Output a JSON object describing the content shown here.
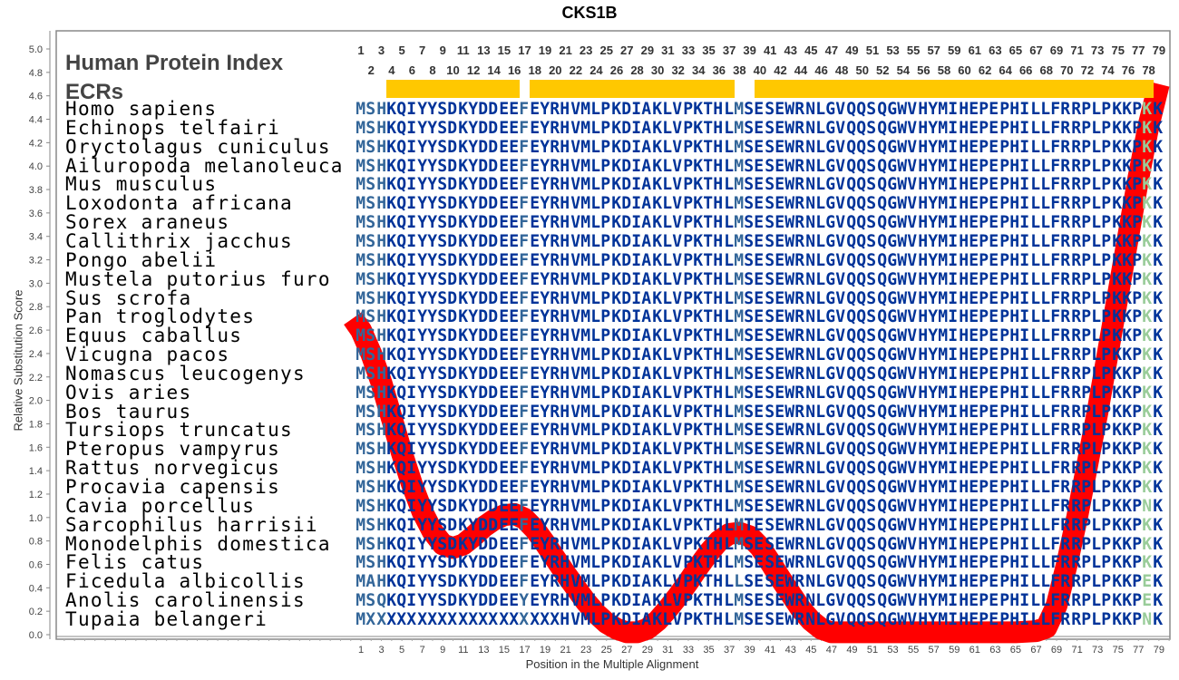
{
  "chart_data": {
    "type": "line",
    "title": "CKS1B",
    "xlabel": "Position in the Multiple Alignment",
    "ylabel": "Relative Substitution Score",
    "xlim": [
      1,
      79
    ],
    "ylim": [
      0.0,
      5.0
    ],
    "yticks": [
      "0.0",
      "0.2",
      "0.4",
      "0.6",
      "0.8",
      "1.0",
      "1.2",
      "1.4",
      "1.6",
      "1.8",
      "2.0",
      "2.2",
      "2.4",
      "2.6",
      "2.8",
      "3.0",
      "3.2",
      "3.4",
      "3.6",
      "3.8",
      "4.0",
      "4.2",
      "4.4",
      "4.6",
      "4.8",
      "5.0"
    ],
    "xticks": [
      "1",
      "3",
      "5",
      "7",
      "9",
      "11",
      "13",
      "15",
      "17",
      "19",
      "21",
      "23",
      "25",
      "27",
      "29",
      "31",
      "33",
      "35",
      "37",
      "39",
      "41",
      "43",
      "45",
      "47",
      "49",
      "51",
      "53",
      "55",
      "57",
      "59",
      "61",
      "63",
      "65",
      "67",
      "69",
      "71",
      "73",
      "75",
      "77",
      "79"
    ],
    "series": [
      {
        "name": "Relative Substitution Score",
        "color": "#ff0000",
        "x": [
          0.2,
          1,
          2,
          3,
          4,
          5,
          6,
          7,
          8,
          9,
          10,
          11,
          12,
          13,
          14,
          15,
          16,
          17,
          18,
          19,
          20,
          21,
          22,
          23,
          24,
          25,
          26,
          27,
          28,
          29,
          30,
          31,
          32,
          33,
          34,
          35,
          36,
          37,
          38,
          39,
          40,
          41,
          42,
          43,
          44,
          45,
          46,
          47,
          48,
          50,
          55,
          60,
          65,
          67,
          68,
          69,
          70,
          71,
          72,
          73,
          74,
          75,
          76,
          77,
          78,
          79
        ],
        "y": [
          2.7,
          2.6,
          2.4,
          2.15,
          1.85,
          1.55,
          1.28,
          1.05,
          0.88,
          0.77,
          0.74,
          0.77,
          0.84,
          0.92,
          0.98,
          1.02,
          1.03,
          0.99,
          0.9,
          0.78,
          0.65,
          0.52,
          0.4,
          0.28,
          0.18,
          0.1,
          0.05,
          0.02,
          0.02,
          0.05,
          0.12,
          0.22,
          0.33,
          0.45,
          0.58,
          0.7,
          0.8,
          0.86,
          0.87,
          0.84,
          0.75,
          0.62,
          0.48,
          0.35,
          0.22,
          0.12,
          0.05,
          0.02,
          0.02,
          0.02,
          0.02,
          0.02,
          0.02,
          0.03,
          0.06,
          0.25,
          0.6,
          1.0,
          1.45,
          1.9,
          2.4,
          2.9,
          3.4,
          3.9,
          4.35,
          4.7
        ]
      }
    ]
  },
  "header": {
    "protein_index_label": "Human Protein Index",
    "ecrs_label": "ECRs",
    "ecr_color": "#ffc800",
    "ecrs": [
      [
        4,
        16
      ],
      [
        18,
        37
      ],
      [
        40,
        78
      ]
    ],
    "top_numbers_odd": [
      "1",
      "3",
      "5",
      "7",
      "9",
      "11",
      "13",
      "15",
      "17",
      "19",
      "21",
      "23",
      "25",
      "27",
      "29",
      "31",
      "33",
      "35",
      "37",
      "39",
      "41",
      "43",
      "45",
      "47",
      "49",
      "51",
      "53",
      "55",
      "57",
      "59",
      "61",
      "63",
      "65",
      "67",
      "69",
      "71",
      "73",
      "75",
      "77",
      "79"
    ],
    "top_numbers_even": [
      "2",
      "4",
      "6",
      "8",
      "10",
      "12",
      "14",
      "16",
      "18",
      "20",
      "22",
      "24",
      "26",
      "28",
      "30",
      "32",
      "34",
      "36",
      "38",
      "40",
      "42",
      "44",
      "46",
      "48",
      "50",
      "52",
      "54",
      "56",
      "58",
      "60",
      "62",
      "64",
      "66",
      "68",
      "70",
      "72",
      "74",
      "76",
      "78"
    ]
  },
  "alignment": {
    "light_columns": [
      1,
      2,
      3,
      17,
      38
    ],
    "green_columns": [
      78
    ],
    "rows": [
      {
        "species": "Homo sapiens",
        "seq": "MSHKQIYYSDKYDDEEFEYRHVMLPKDIAKLVPKTHLMSESEWRNLGVQQSQGWVHYMIHEPEPHILLFRRPLPKKPKK"
      },
      {
        "species": "Echinops telfairi",
        "seq": "MSHKQIYYSDKYDDEEFEYRHVMLPKDIAKLVPKTHLMSESEWRNLGVQQSQGWVHYMIHEPEPHILLFRRPLPKKPKK"
      },
      {
        "species": "Oryctolagus cuniculus",
        "seq": "MSHKQIYYSDKYDDEEFEYRHVMLPKDIAKLVPKTHLMSESEWRNLGVQQSQGWVHYMIHEPEPHILLFRRPLPKKPKK"
      },
      {
        "species": "Ailuropoda melanoleuca",
        "seq": "MSHKQIYYSDKYDDEEFEYRHVMLPKDIAKLVPKTHLMSESEWRNLGVQQSQGWVHYMIHEPEPHILLFRRPLPKKPKK"
      },
      {
        "species": "Mus musculus",
        "seq": "MSHKQIYYSDKYDDEEFEYRHVMLPKDIAKLVPKTHLMSESEWRNLGVQQSQGWVHYMIHEPEPHILLFRRPLPKKPKK"
      },
      {
        "species": "Loxodonta africana",
        "seq": "MSHKQIYYSDKYDDEEFEYRHVMLPKDIAKLVPKTHLMSESEWRNLGVQQSQGWVHYMIHEPEPHILLFRRPLPKKPKK"
      },
      {
        "species": "Sorex araneus",
        "seq": "MSHKQIYYSDKYDDEEFEYRHVMLPKDIAKLVPKTHLMSESEWRNLGVQQSQGWVHYMIHEPEPHILLFRRPLPKKPKK"
      },
      {
        "species": "Callithrix jacchus",
        "seq": "MSHKQIYYSDKYDDEEFEYRHVMLPKDIAKLVPKTHLMSESEWRNLGVQQSQGWVHYMIHEPEPHILLFRRPLPKKPKK"
      },
      {
        "species": "Pongo abelii",
        "seq": "MSHKQIYYSDKYDDEEFEYRHVMLPKDIAKLVPKTHLMSESEWRNLGVQQSQGWVHYMIHEPEPHILLFRRPLPKKPKK"
      },
      {
        "species": "Mustela putorius furo",
        "seq": "MSHKQIYYSDKYDDEEFEYRHVMLPKDIAKLVPKTHLMSESEWRNLGVQQSQGWVHYMIHEPEPHILLFRRPLPKKPKK"
      },
      {
        "species": "Sus scrofa",
        "seq": "MSHKQIYYSDKYDDEEFEYRHVMLPKDIAKLVPKTHLMSESEWRNLGVQQSQGWVHYMIHEPEPHILLFRRPLPKKPKK"
      },
      {
        "species": "Pan troglodytes",
        "seq": "MSHKQIYYSDKYDDEEFEYRHVMLPKDIAKLVPKTHLMSESEWRNLGVQQSQGWVHYMIHEPEPHILLFRRPLPKKPKK"
      },
      {
        "species": "Equus caballus",
        "seq": "MSHKQIYYSDKYDDEEFEYRHVMLPKDIAKLVPKTHLMSESEWRNLGVQQSQGWVHYMIHEPEPHILLFRRPLPKKPKK"
      },
      {
        "species": "Vicugna pacos",
        "seq": "MSHKQIYYSDKYDDEEFEYRHVMLPKDIAKLVPKTHLMSESEWRNLGVQQSQGWVHYMIHEPEPHILLFRRPLPKKPKK"
      },
      {
        "species": "Nomascus leucogenys",
        "seq": "MSHKQIYYSDKYDDEEFEYRHVMLPKDIAKLVPKTHLMSESEWRNLGVQQSQGWVHYMIHEPEPHILLFRRPLPKKPKK"
      },
      {
        "species": "Ovis aries",
        "seq": "MSHKQIYYSDKYDDEEFEYRHVMLPKDIAKLVPKTHLMSESEWRNLGVQQSQGWVHYMIHEPEPHILLFRRPLPKKPKK"
      },
      {
        "species": "Bos taurus",
        "seq": "MSHKQIYYSDKYDDEEFEYRHVMLPKDIAKLVPKTHLMSESEWRNLGVQQSQGWVHYMIHEPEPHILLFRRPLPKKPKK"
      },
      {
        "species": "Tursiops truncatus",
        "seq": "MSHKQIYYSDKYDDEEFEYRHVMLPKDIAKLVPKTHLMSESEWRNLGVQQSQGWVHYMIHEPEPHILLFRRPLPKKPKK"
      },
      {
        "species": "Pteropus vampyrus",
        "seq": "MSHKQIYYSDKYDDEEFEYRHVMLPKDIAKLVPKTHLMSESEWRNLGVQQSQGWVHYMIHEPEPHILLFRRPLPKKPKK"
      },
      {
        "species": "Rattus norvegicus",
        "seq": "MSHKQIYYSDKYDDEEFEYRHVMLPKDIAKLVPKTHLMSESEWRNLGVQQSQGWVHYMIHEPEPHILLFRRPLPKKPKK"
      },
      {
        "species": "Procavia capensis",
        "seq": "MSHKQIYYSDKYDDEEFEYRHVMLPKDIAKLVPKTHLMSESEWRNLGVQQSQGWVHYMIHEPEPHILLFRRPLPKKPKK"
      },
      {
        "species": "Cavia porcellus",
        "seq": "MSHKQIYYSDKYDDEEFEYRHVMLPKDIAKLVPKTHLMSESEWRNLGVQQSQGWVHYMIHEPEPHILLFRRPLPKKPNK"
      },
      {
        "species": "Sarcophilus harrisii",
        "seq": "MSHKQIYYSDKYDDEEFEYRHVMLPKDIAKLVPKTHLMTESEWRNLGVQQSQGWVHYMIHEPEPHILLFRRPLPKKPKK"
      },
      {
        "species": "Monodelphis domestica",
        "seq": "MSHKQIYYSDKYDDEEFEYRHVMLPKDIAKLVPKTHLMSESEWRNLGVQQSQGWVHYMIHEPEPHILLFRRPLPKKPKK"
      },
      {
        "species": "Felis catus",
        "seq": "MSHKQIYYSDKYDDEEFEYRHVMLPKDIAKLVPKTHLMSESEWRNLGVQQSQGWVHYMIHEPEPHILLFRRPLPKKPKK"
      },
      {
        "species": "Ficedula albicollis",
        "seq": "MAHKQIYYSDKYDDEEFEYRHVMLPKDIAKLVPKTHLLSESEWRNLGVQQSQGWVHYMIHEPEPHILLFRRPLPKKPEK"
      },
      {
        "species": "Anolis carolinensis",
        "seq": "MSQKQIYYSDKYDDEEYEYRHVMLPKDIAKLVPKTHLMSESEWRNLGVQQSQGWVHYMIHEPEPHILLFRRPLPKKPEK"
      },
      {
        "species": "Tupaia belangeri",
        "seq": "MXXXXXXXXXXXXXXXXXXXHVMLPKDIAKLVPKTHLMSESEWRNLGVQQSQGWVHYMIHEPEPHILLFRRPLPKKPNK"
      }
    ]
  }
}
